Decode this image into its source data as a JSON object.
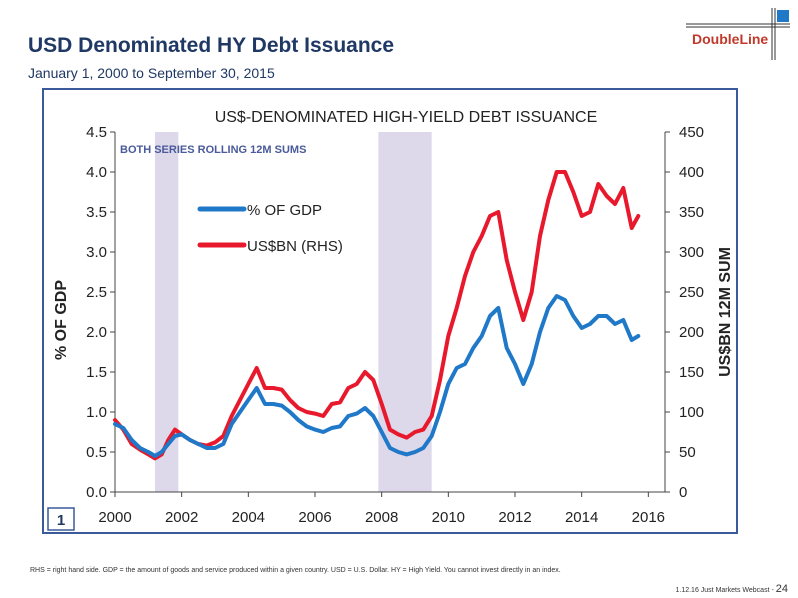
{
  "slide": {
    "title": "USD Denominated HY Debt Issuance",
    "subtitle": "January 1, 2000 to September 30, 2015",
    "logo_text": "DoubleLine",
    "footnote": "RHS = right hand side. GDP = the amount of goods and service produced within a given country. USD = U.S. Dollar. HY = High Yield. You cannot invest directly in an index.",
    "footer_label": "1.12.16 Just Markets Webcast -",
    "page_number": "24"
  },
  "colors": {
    "title": "#1f3864",
    "gdp_series": "#1f78c8",
    "usd_series": "#e8192c",
    "recession_shade": "#ddd9ea",
    "logo": "#c0392b"
  },
  "chart_data": {
    "type": "line",
    "title": "US$-DENOMINATED HIGH-YIELD DEBT ISSUANCE",
    "annotation": "BOTH SERIES ROLLING 12M SUMS",
    "ylabel_left": "% OF GDP",
    "ylabel_right": "US$BN 12M SUM",
    "badge": "1",
    "xlim": [
      2000,
      2016.5
    ],
    "ylim_left": [
      0,
      4.5
    ],
    "ylim_right": [
      0,
      450
    ],
    "x_ticks": [
      "2000",
      "2002",
      "2004",
      "2006",
      "2008",
      "2010",
      "2012",
      "2014",
      "2016"
    ],
    "y_ticks_left": [
      "0.0",
      "0.5",
      "1.0",
      "1.5",
      "2.0",
      "2.5",
      "3.0",
      "3.5",
      "4.0",
      "4.5"
    ],
    "y_ticks_right": [
      "0",
      "50",
      "100",
      "150",
      "200",
      "250",
      "300",
      "350",
      "400",
      "450"
    ],
    "grid": false,
    "legend_position": "upper-left",
    "recessions": [
      [
        2001.2,
        2001.9
      ],
      [
        2007.9,
        2009.5
      ]
    ],
    "series": [
      {
        "name": "% OF GDP",
        "axis": "left",
        "points": [
          [
            2000,
            0.85
          ],
          [
            2000.25,
            0.8
          ],
          [
            2000.5,
            0.65
          ],
          [
            2000.75,
            0.55
          ],
          [
            2001,
            0.5
          ],
          [
            2001.2,
            0.45
          ],
          [
            2001.4,
            0.5
          ],
          [
            2001.6,
            0.6
          ],
          [
            2001.8,
            0.7
          ],
          [
            2002,
            0.72
          ],
          [
            2002.25,
            0.65
          ],
          [
            2002.5,
            0.6
          ],
          [
            2002.75,
            0.55
          ],
          [
            2003,
            0.55
          ],
          [
            2003.25,
            0.6
          ],
          [
            2003.5,
            0.85
          ],
          [
            2003.75,
            1.0
          ],
          [
            2004,
            1.15
          ],
          [
            2004.25,
            1.3
          ],
          [
            2004.5,
            1.1
          ],
          [
            2004.75,
            1.1
          ],
          [
            2005,
            1.08
          ],
          [
            2005.25,
            1.0
          ],
          [
            2005.5,
            0.9
          ],
          [
            2005.75,
            0.82
          ],
          [
            2006,
            0.78
          ],
          [
            2006.25,
            0.75
          ],
          [
            2006.5,
            0.8
          ],
          [
            2006.75,
            0.82
          ],
          [
            2007,
            0.95
          ],
          [
            2007.25,
            0.98
          ],
          [
            2007.5,
            1.05
          ],
          [
            2007.75,
            0.95
          ],
          [
            2008,
            0.75
          ],
          [
            2008.25,
            0.55
          ],
          [
            2008.5,
            0.5
          ],
          [
            2008.75,
            0.47
          ],
          [
            2009,
            0.5
          ],
          [
            2009.25,
            0.55
          ],
          [
            2009.5,
            0.7
          ],
          [
            2009.75,
            1.0
          ],
          [
            2010,
            1.35
          ],
          [
            2010.25,
            1.55
          ],
          [
            2010.5,
            1.6
          ],
          [
            2010.75,
            1.8
          ],
          [
            2011,
            1.95
          ],
          [
            2011.25,
            2.2
          ],
          [
            2011.5,
            2.3
          ],
          [
            2011.75,
            1.8
          ],
          [
            2012,
            1.6
          ],
          [
            2012.25,
            1.35
          ],
          [
            2012.5,
            1.6
          ],
          [
            2012.75,
            2.0
          ],
          [
            2013,
            2.3
          ],
          [
            2013.25,
            2.45
          ],
          [
            2013.5,
            2.4
          ],
          [
            2013.75,
            2.2
          ],
          [
            2014,
            2.05
          ],
          [
            2014.25,
            2.1
          ],
          [
            2014.5,
            2.2
          ],
          [
            2014.75,
            2.2
          ],
          [
            2015,
            2.1
          ],
          [
            2015.25,
            2.15
          ],
          [
            2015.5,
            1.9
          ],
          [
            2015.7,
            1.95
          ]
        ]
      },
      {
        "name": "US$BN (RHS)",
        "axis": "right",
        "points": [
          [
            2000,
            90
          ],
          [
            2000.25,
            78
          ],
          [
            2000.5,
            60
          ],
          [
            2000.75,
            53
          ],
          [
            2001,
            47
          ],
          [
            2001.2,
            42
          ],
          [
            2001.4,
            47
          ],
          [
            2001.6,
            65
          ],
          [
            2001.8,
            78
          ],
          [
            2002,
            72
          ],
          [
            2002.25,
            65
          ],
          [
            2002.5,
            60
          ],
          [
            2002.75,
            58
          ],
          [
            2003,
            62
          ],
          [
            2003.25,
            70
          ],
          [
            2003.5,
            95
          ],
          [
            2003.75,
            115
          ],
          [
            2004,
            135
          ],
          [
            2004.25,
            155
          ],
          [
            2004.5,
            130
          ],
          [
            2004.75,
            130
          ],
          [
            2005,
            128
          ],
          [
            2005.25,
            115
          ],
          [
            2005.5,
            105
          ],
          [
            2005.75,
            100
          ],
          [
            2006,
            98
          ],
          [
            2006.25,
            95
          ],
          [
            2006.5,
            110
          ],
          [
            2006.75,
            112
          ],
          [
            2007,
            130
          ],
          [
            2007.25,
            135
          ],
          [
            2007.5,
            150
          ],
          [
            2007.75,
            140
          ],
          [
            2008,
            110
          ],
          [
            2008.25,
            78
          ],
          [
            2008.5,
            72
          ],
          [
            2008.75,
            68
          ],
          [
            2009,
            75
          ],
          [
            2009.25,
            78
          ],
          [
            2009.5,
            95
          ],
          [
            2009.75,
            140
          ],
          [
            2010,
            195
          ],
          [
            2010.25,
            230
          ],
          [
            2010.5,
            270
          ],
          [
            2010.75,
            300
          ],
          [
            2011,
            320
          ],
          [
            2011.25,
            345
          ],
          [
            2011.5,
            350
          ],
          [
            2011.75,
            290
          ],
          [
            2012,
            250
          ],
          [
            2012.25,
            215
          ],
          [
            2012.5,
            250
          ],
          [
            2012.75,
            320
          ],
          [
            2013,
            365
          ],
          [
            2013.25,
            400
          ],
          [
            2013.5,
            400
          ],
          [
            2013.75,
            375
          ],
          [
            2014,
            345
          ],
          [
            2014.25,
            350
          ],
          [
            2014.5,
            385
          ],
          [
            2014.75,
            370
          ],
          [
            2015,
            360
          ],
          [
            2015.25,
            380
          ],
          [
            2015.5,
            330
          ],
          [
            2015.7,
            345
          ]
        ]
      }
    ]
  }
}
